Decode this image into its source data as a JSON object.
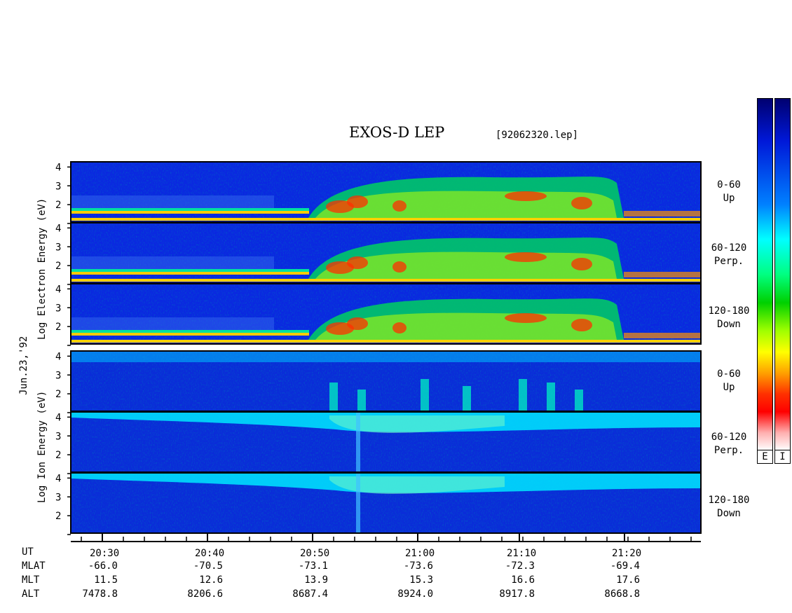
{
  "title": "EXOS-D LEP",
  "file_label": "[92062320.lep]",
  "date_label": "Jun.23,'92",
  "electron_axis_label": "Log Electron Energy (eV)",
  "ion_axis_label": "Log Ion Energy (eV)",
  "colorbar_labels": [
    "E",
    "I"
  ],
  "chart_data": {
    "type": "heatmap",
    "y_ticks": [
      "1",
      "2",
      "3",
      "4"
    ],
    "ylim": [
      1,
      4.2
    ],
    "x_tick_labels": [
      "20:30",
      "20:40",
      "20:50",
      "21:00",
      "21:10",
      "21:20"
    ],
    "panels": [
      {
        "species": "Electron",
        "angle": "0-60",
        "direction": "Up"
      },
      {
        "species": "Electron",
        "angle": "60-120",
        "direction": "Perp."
      },
      {
        "species": "Electron",
        "angle": "120-180",
        "direction": "Down"
      },
      {
        "species": "Ion",
        "angle": "0-60",
        "direction": "Up"
      },
      {
        "species": "Ion",
        "angle": "60-120",
        "direction": "Perp."
      },
      {
        "species": "Ion",
        "angle": "120-180",
        "direction": "Down"
      }
    ],
    "colormap": [
      "#ffffff",
      "#ff0000",
      "#ff8000",
      "#ffff00",
      "#00e000",
      "#00ffff",
      "#00a0ff",
      "#0040ff",
      "#000080"
    ]
  },
  "ephemeris": {
    "labels": [
      "UT",
      "MLAT",
      "MLT",
      "ALT"
    ],
    "rows": [
      [
        "-66.0",
        "-70.5",
        "-73.1",
        "-73.6",
        "-72.3",
        "-69.4"
      ],
      [
        "11.5",
        "12.6",
        "13.9",
        "15.3",
        "16.6",
        "17.6"
      ],
      [
        "7478.8",
        "8206.6",
        "8687.4",
        "8924.0",
        "8917.8",
        "8668.8"
      ]
    ]
  }
}
